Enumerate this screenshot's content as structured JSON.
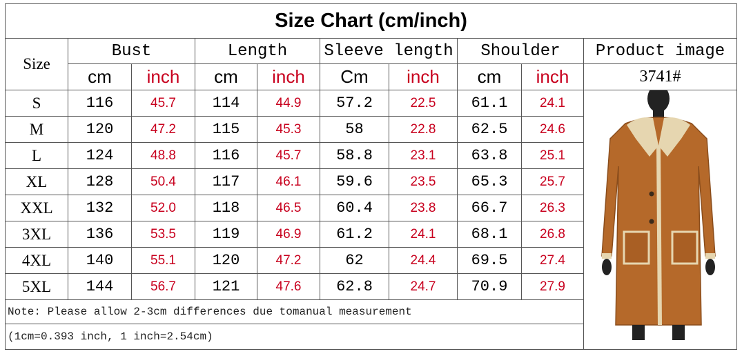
{
  "title": "Size Chart (cm/inch)",
  "headers": {
    "size": "Size",
    "groups": [
      "Bust",
      "Length",
      "Sleeve length",
      "Shoulder"
    ],
    "units": [
      "cm",
      "inch",
      "cm",
      "inch",
      "Cm",
      "inch",
      "cm",
      "inch"
    ],
    "product": "Product image",
    "code": "3741#"
  },
  "rows": [
    [
      "S",
      "116",
      "45.7",
      "114",
      "44.9",
      "57.2",
      "22.5",
      "61.1",
      "24.1"
    ],
    [
      "M",
      "120",
      "47.2",
      "115",
      "45.3",
      "58",
      "22.8",
      "62.5",
      "24.6"
    ],
    [
      "L",
      "124",
      "48.8",
      "116",
      "45.7",
      "58.8",
      "23.1",
      "63.8",
      "25.1"
    ],
    [
      "XL",
      "128",
      "50.4",
      "117",
      "46.1",
      "59.6",
      "23.5",
      "65.3",
      "25.7"
    ],
    [
      "XXL",
      "132",
      "52.0",
      "118",
      "46.5",
      "60.4",
      "23.8",
      "66.7",
      "26.3"
    ],
    [
      "3XL",
      "136",
      "53.5",
      "119",
      "46.9",
      "61.2",
      "24.1",
      "68.1",
      "26.8"
    ],
    [
      "4XL",
      "140",
      "55.1",
      "120",
      "47.2",
      "62",
      "24.4",
      "69.5",
      "27.4"
    ],
    [
      "5XL",
      "144",
      "56.7",
      "121",
      "47.6",
      "62.8",
      "24.7",
      "70.9",
      "27.9"
    ]
  ],
  "notes": [
    "Note: Please allow 2-3cm differences due tomanual measurement",
    "(1cm=0.393 inch, 1 inch=2.54cm)"
  ]
}
